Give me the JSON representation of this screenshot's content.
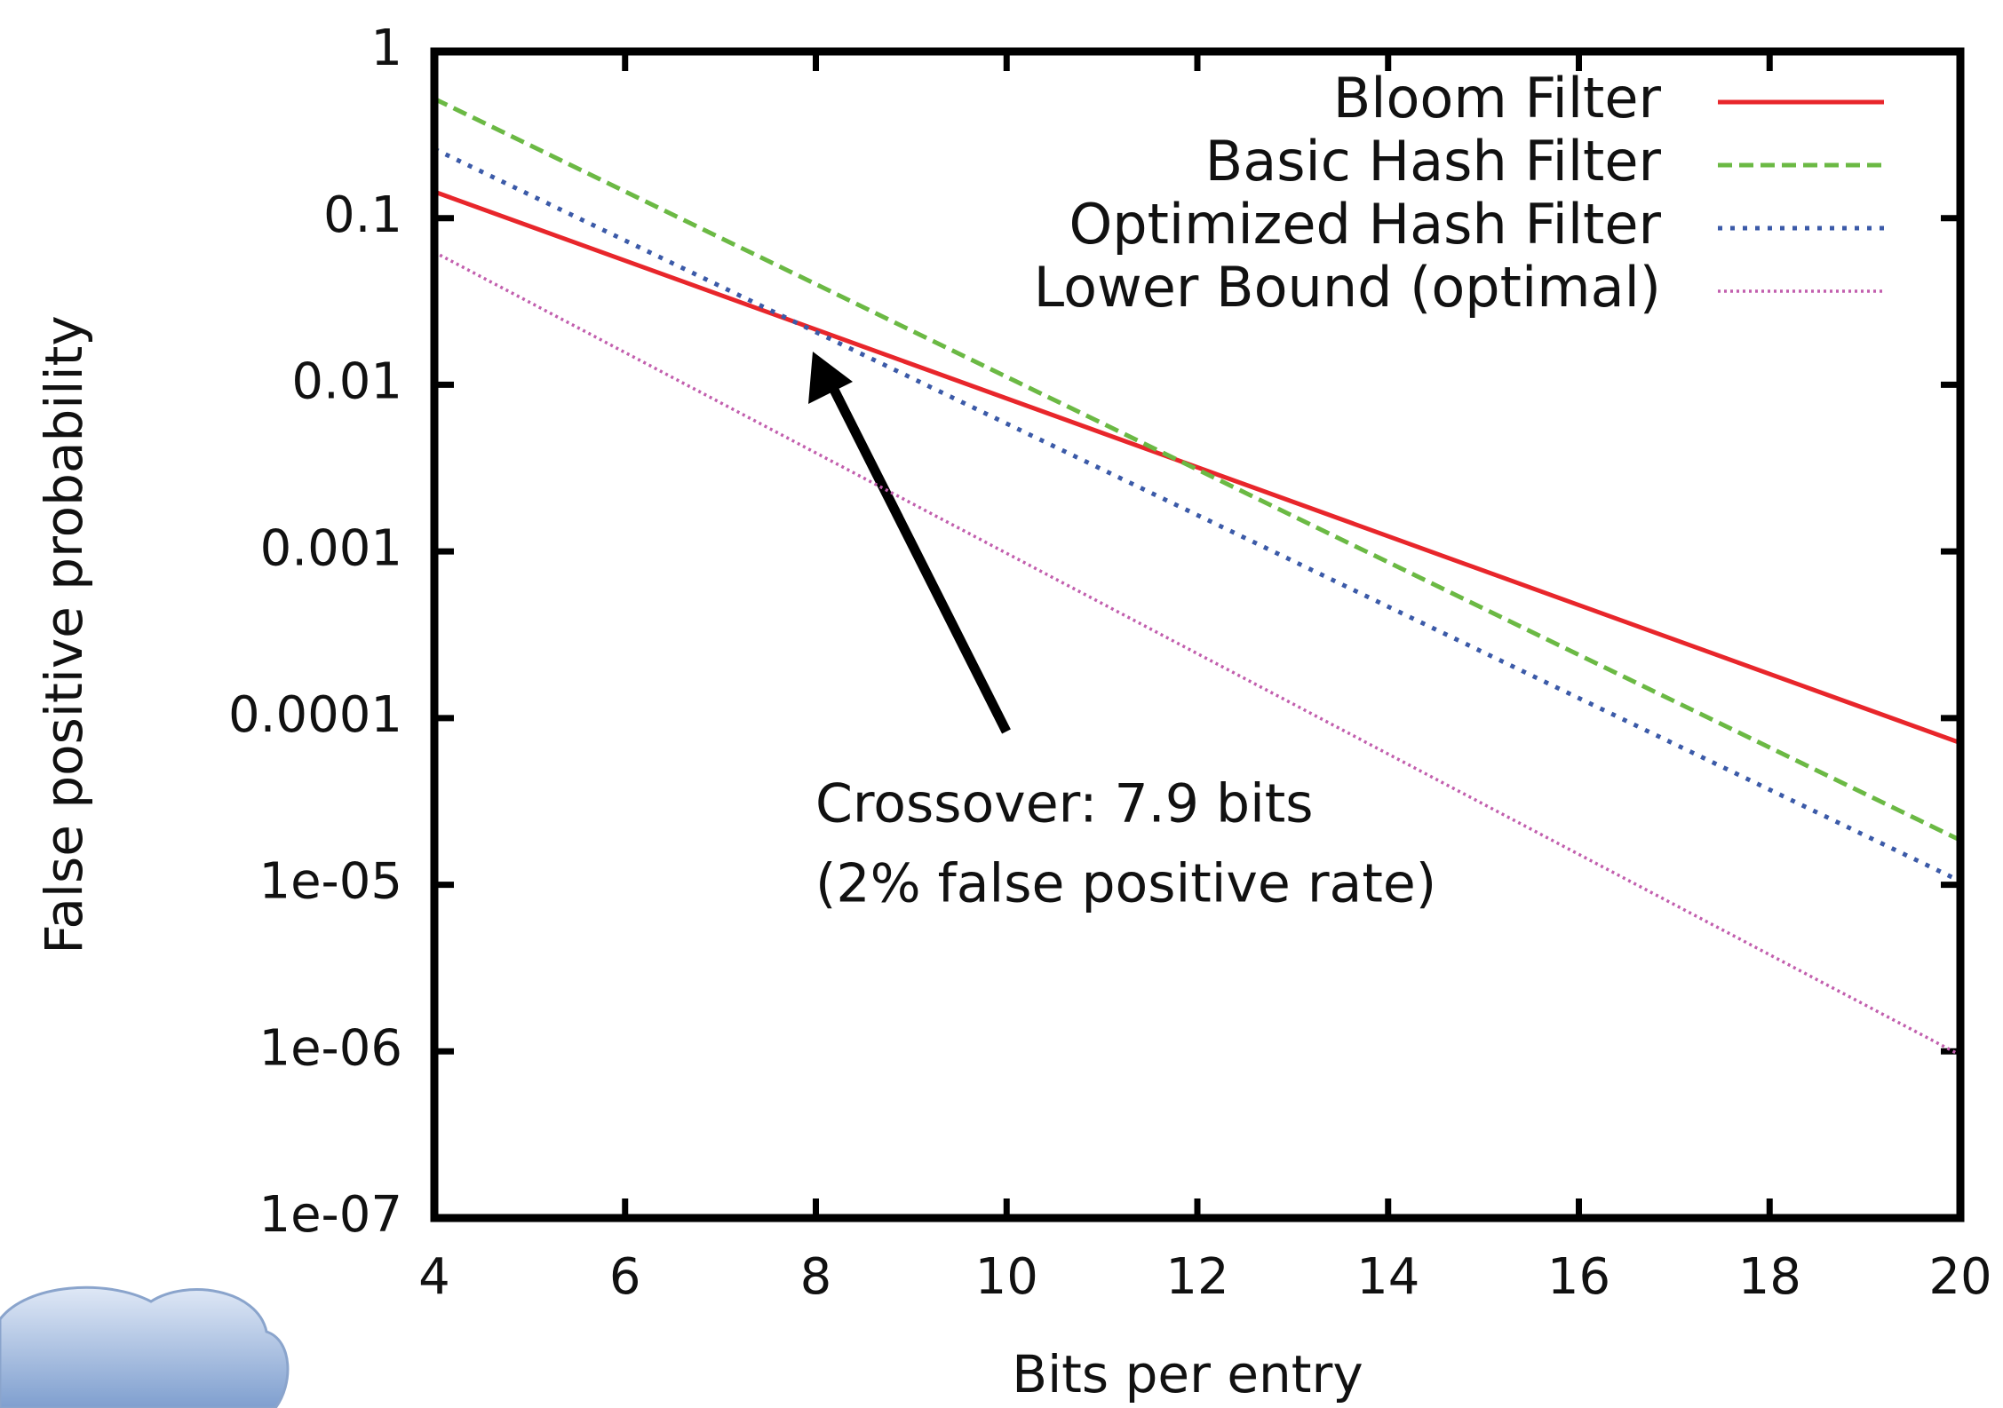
{
  "chart_data": {
    "type": "line",
    "xlabel": "Bits per entry",
    "ylabel": "False positive probability",
    "x": [
      4,
      20
    ],
    "series": [
      {
        "name": "Bloom Filter",
        "color": "#e8262b",
        "dash": "solid",
        "values": [
          0.144,
          7.1e-05
        ]
      },
      {
        "name": "Basic Hash Filter",
        "color": "#6bb944",
        "dash": "dashed",
        "values": [
          0.52,
          1.85e-05
        ]
      },
      {
        "name": "Optimized Hash Filter",
        "color": "#3b5aa8",
        "dash": "dotted",
        "values": [
          0.26,
          1.05e-05
        ]
      },
      {
        "name": "Lower Bound (optimal)",
        "color": "#c25fae",
        "dash": "fine-dotted",
        "values": [
          0.0625,
          9.5e-07
        ]
      }
    ],
    "xlim": [
      4,
      20
    ],
    "xticks": [
      4,
      6,
      8,
      10,
      12,
      14,
      16,
      18,
      20
    ],
    "ylim": [
      1e-07,
      1
    ],
    "ylog": true,
    "yticks": [
      1,
      0.1,
      0.01,
      0.001,
      0.0001,
      {
        "value": 1e-05,
        "label": "1e-05"
      },
      {
        "value": 1e-06,
        "label": "1e-06"
      },
      {
        "value": 1e-07,
        "label": "1e-07"
      }
    ],
    "legend": "upper right",
    "annotation": [
      "Crossover:  7.9 bits",
      "(2% false positive rate)"
    ]
  }
}
